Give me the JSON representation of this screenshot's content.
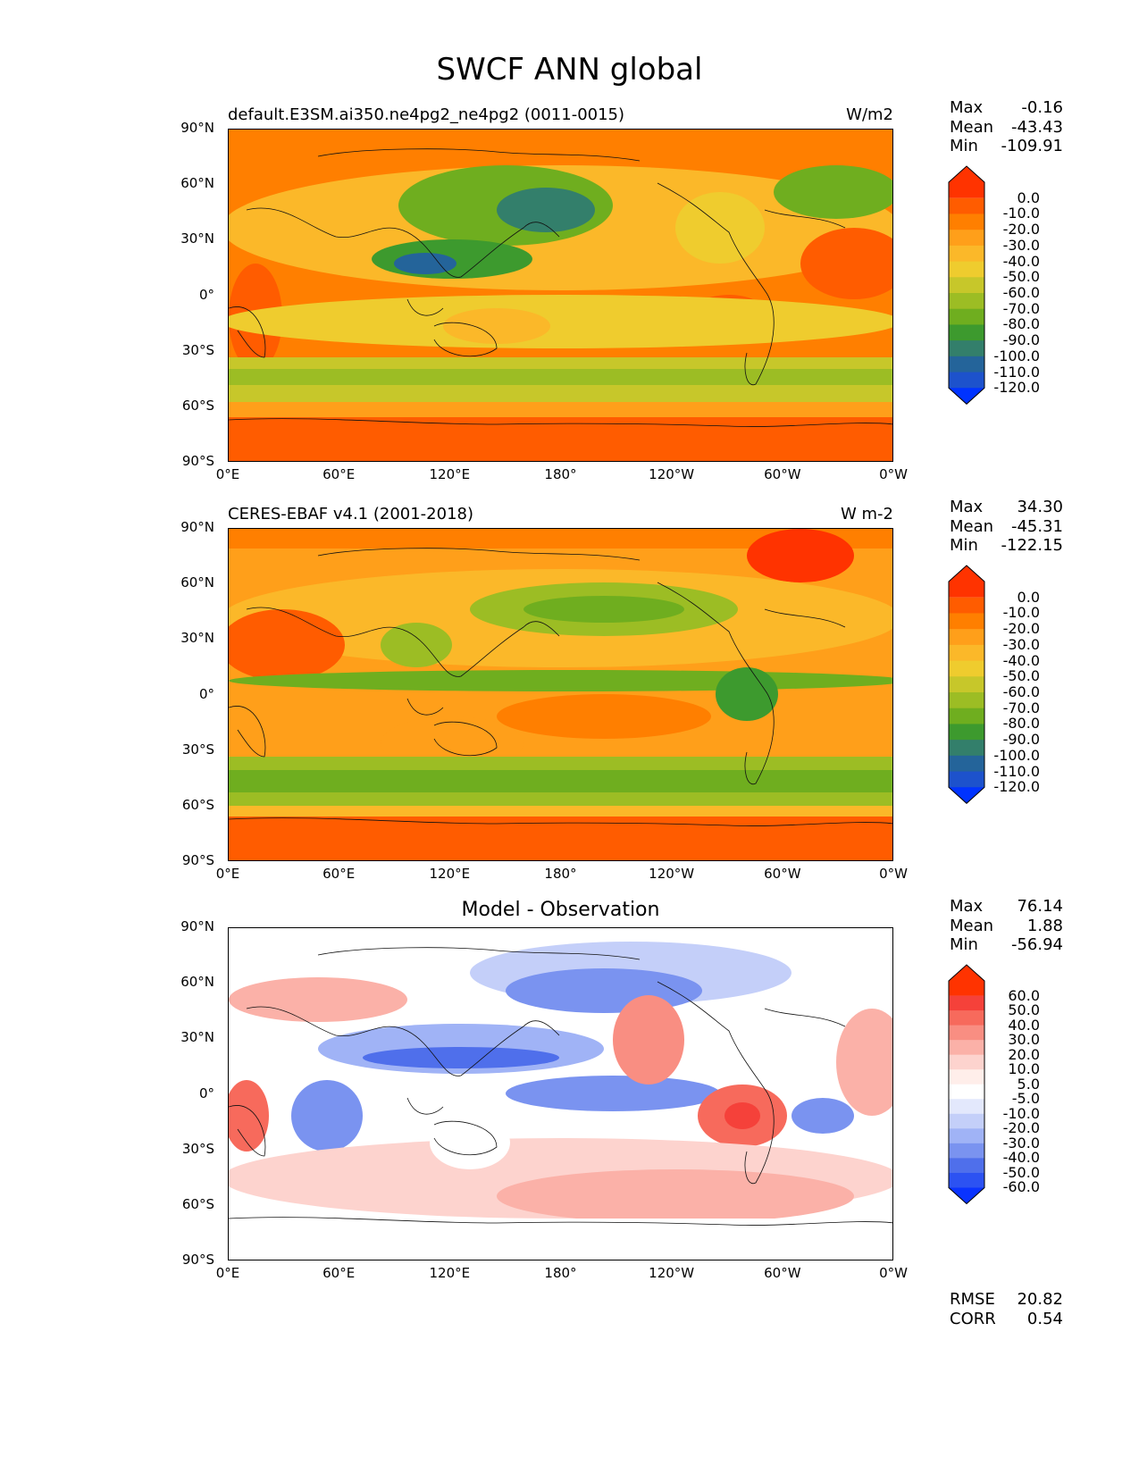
{
  "title": "SWCF ANN global",
  "lat_labels": [
    "90°N",
    "60°N",
    "30°N",
    "0°",
    "30°S",
    "60°S",
    "90°S"
  ],
  "lon_labels": [
    "0°E",
    "60°E",
    "120°E",
    "180°",
    "120°W",
    "60°W",
    "0°W"
  ],
  "panels": [
    {
      "left_title": "default.E3SM.ai350.ne4pg2_ne4pg2 (0011-0015)",
      "center_title": "",
      "right_title": "W/m2",
      "stats": [
        {
          "label": "Max",
          "value": "-0.16"
        },
        {
          "label": "Mean",
          "value": "-43.43"
        },
        {
          "label": "Min",
          "value": "-109.91"
        }
      ],
      "colorbar_levels": [
        "0.0",
        "-10.0",
        "-20.0",
        "-30.0",
        "-40.0",
        "-50.0",
        "-60.0",
        "-70.0",
        "-80.0",
        "-90.0",
        "-100.0",
        "-110.0",
        "-120.0"
      ],
      "colorbar_colors": [
        "#ff3300",
        "#ff5c00",
        "#ff7f00",
        "#ff9f1a",
        "#fbb829",
        "#efcc2e",
        "#c7c72a",
        "#9cbd24",
        "#6fae1f",
        "#3d9a2e",
        "#337f6b",
        "#24649a",
        "#1d52cc",
        "#0033ff"
      ],
      "footer": []
    },
    {
      "left_title": "CERES-EBAF v4.1 (2001-2018)",
      "center_title": "",
      "right_title": "W m-2",
      "stats": [
        {
          "label": "Max",
          "value": "34.30"
        },
        {
          "label": "Mean",
          "value": "-45.31"
        },
        {
          "label": "Min",
          "value": "-122.15"
        }
      ],
      "colorbar_levels": [
        "0.0",
        "-10.0",
        "-20.0",
        "-30.0",
        "-40.0",
        "-50.0",
        "-60.0",
        "-70.0",
        "-80.0",
        "-90.0",
        "-100.0",
        "-110.0",
        "-120.0"
      ],
      "colorbar_colors": [
        "#ff3300",
        "#ff5c00",
        "#ff7f00",
        "#ff9f1a",
        "#fbb829",
        "#efcc2e",
        "#c7c72a",
        "#9cbd24",
        "#6fae1f",
        "#3d9a2e",
        "#337f6b",
        "#24649a",
        "#1d52cc",
        "#0033ff"
      ],
      "footer": []
    },
    {
      "left_title": "",
      "center_title": "Model - Observation",
      "right_title": "",
      "stats": [
        {
          "label": "Max",
          "value": "76.14"
        },
        {
          "label": "Mean",
          "value": "1.88"
        },
        {
          "label": "Min",
          "value": "-56.94"
        }
      ],
      "colorbar_levels": [
        "60.0",
        "50.0",
        "40.0",
        "30.0",
        "20.0",
        "10.0",
        "5.0",
        "-5.0",
        "-10.0",
        "-20.0",
        "-30.0",
        "-40.0",
        "-50.0",
        "-60.0"
      ],
      "colorbar_colors": [
        "#ff3300",
        "#f5413a",
        "#f76a5c",
        "#f98e82",
        "#fbb1a8",
        "#fdd3ce",
        "#ffeeea",
        "#ffffff",
        "#e3e8fc",
        "#c4cff9",
        "#a0b3f6",
        "#7a93f0",
        "#4f6feb",
        "#2c52f2",
        "#0a33ff"
      ],
      "footer": [
        {
          "label": "RMSE",
          "value": "20.82"
        },
        {
          "label": "CORR",
          "value": "0.54"
        }
      ]
    }
  ]
}
